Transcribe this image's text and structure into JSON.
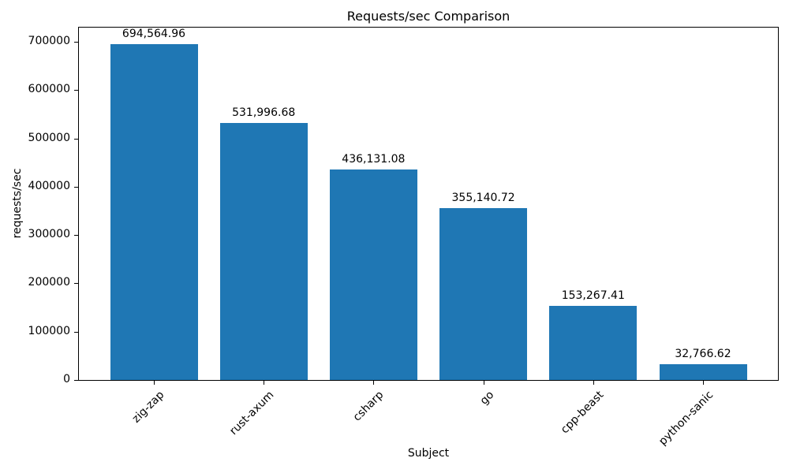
{
  "chart_data": {
    "type": "bar",
    "title": "Requests/sec Comparison",
    "xlabel": "Subject",
    "ylabel": "requests/sec",
    "categories": [
      "zig-zap",
      "rust-axum",
      "csharp",
      "go",
      "cpp-beast",
      "python-sanic"
    ],
    "values": [
      694564.96,
      531996.68,
      436131.08,
      355140.72,
      153267.41,
      32766.62
    ],
    "bar_value_labels": [
      "694,564.96",
      "531,996.68",
      "436,131.08",
      "355,140.72",
      "153,267.41",
      "32,766.62"
    ],
    "yticks": [
      0,
      100000,
      200000,
      300000,
      400000,
      500000,
      600000,
      700000
    ],
    "ylim": [
      0,
      729293
    ],
    "bar_color": "#1f77b4",
    "axis_color": "#000000",
    "background_color": "#ffffff",
    "grid": false,
    "x_tick_rotation_deg": 45
  }
}
